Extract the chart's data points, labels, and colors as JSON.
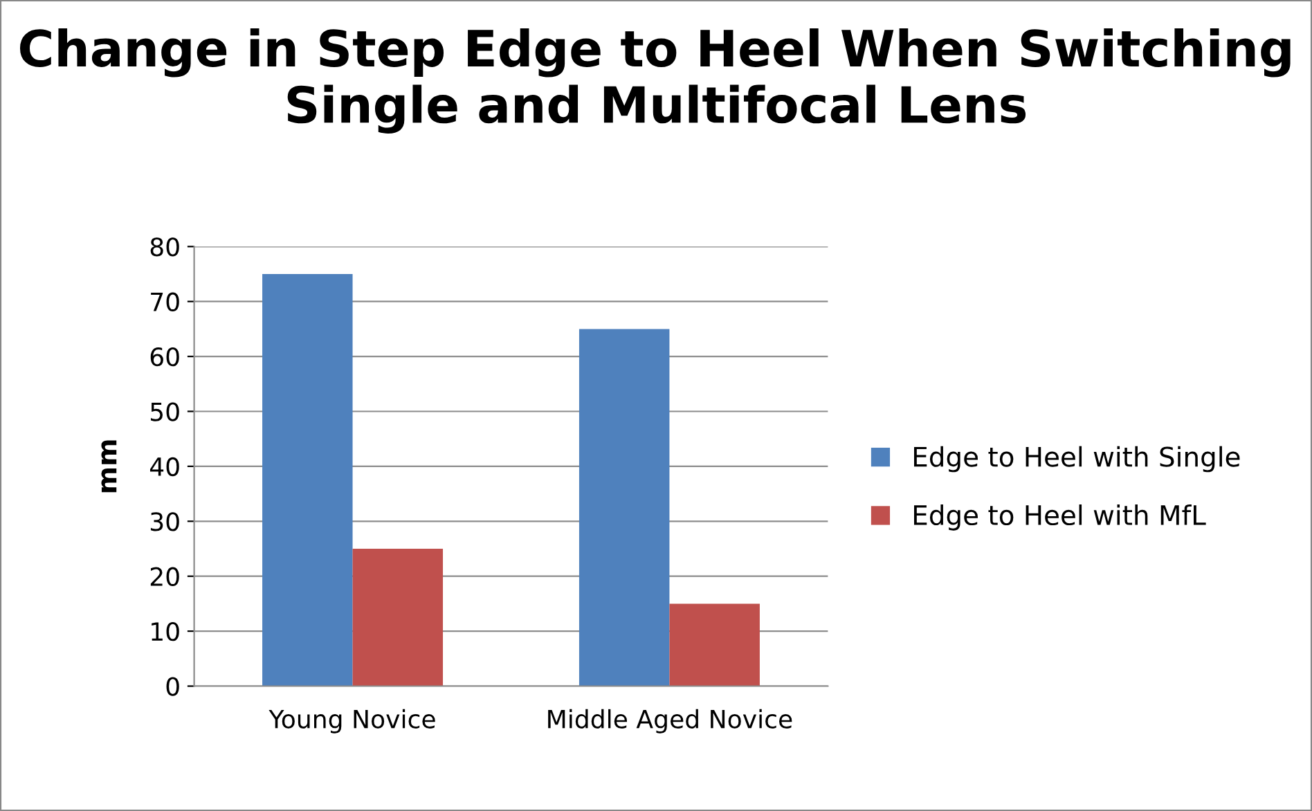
{
  "chart_data": {
    "type": "bar",
    "title": "Change in Step Edge to Heel When Switching Single and Multifocal Lens",
    "ylabel": "mm",
    "categories": [
      "Young Novice",
      "Middle Aged Novice"
    ],
    "series": [
      {
        "name": "Edge to Heel with Single",
        "color": "#4f81bd",
        "values": [
          75,
          65
        ]
      },
      {
        "name": "Edge to Heel with MfL",
        "color": "#c0504d",
        "values": [
          25,
          15
        ]
      }
    ],
    "ylim": [
      0,
      80
    ],
    "yticks": [
      0,
      10,
      20,
      30,
      40,
      50,
      60,
      70,
      80
    ],
    "grid": "y",
    "legend": "right"
  }
}
